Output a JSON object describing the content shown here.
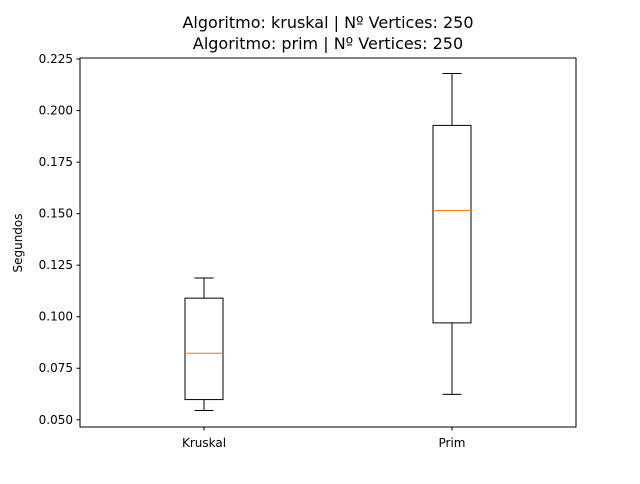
{
  "chart_data": {
    "type": "box",
    "title_lines": [
      "Algoritmo: kruskal | Nº Vertices: 250",
      "Algoritmo: prim | Nº Vertices: 250"
    ],
    "xlabel": "",
    "ylabel": "Segundos",
    "categories": [
      "Kruskal",
      "Prim"
    ],
    "ylim": [
      0.0465,
      0.2255
    ],
    "yticks": [
      0.05,
      0.075,
      0.1,
      0.125,
      0.15,
      0.175,
      0.2,
      0.225
    ],
    "ytick_labels": [
      "0.050",
      "0.075",
      "0.100",
      "0.125",
      "0.150",
      "0.175",
      "0.200",
      "0.225"
    ],
    "grid": false,
    "boxes": [
      {
        "whisker_low": 0.0545,
        "q1": 0.0598,
        "median": 0.0823,
        "q3": 0.109,
        "whisker_high": 0.1188
      },
      {
        "whisker_low": 0.0623,
        "q1": 0.097,
        "median": 0.1515,
        "q3": 0.1928,
        "whisker_high": 0.218
      }
    ],
    "colors": {
      "box": "#000000",
      "median": "#ff7f0e",
      "axes": "#000000",
      "text": "#000000"
    }
  }
}
